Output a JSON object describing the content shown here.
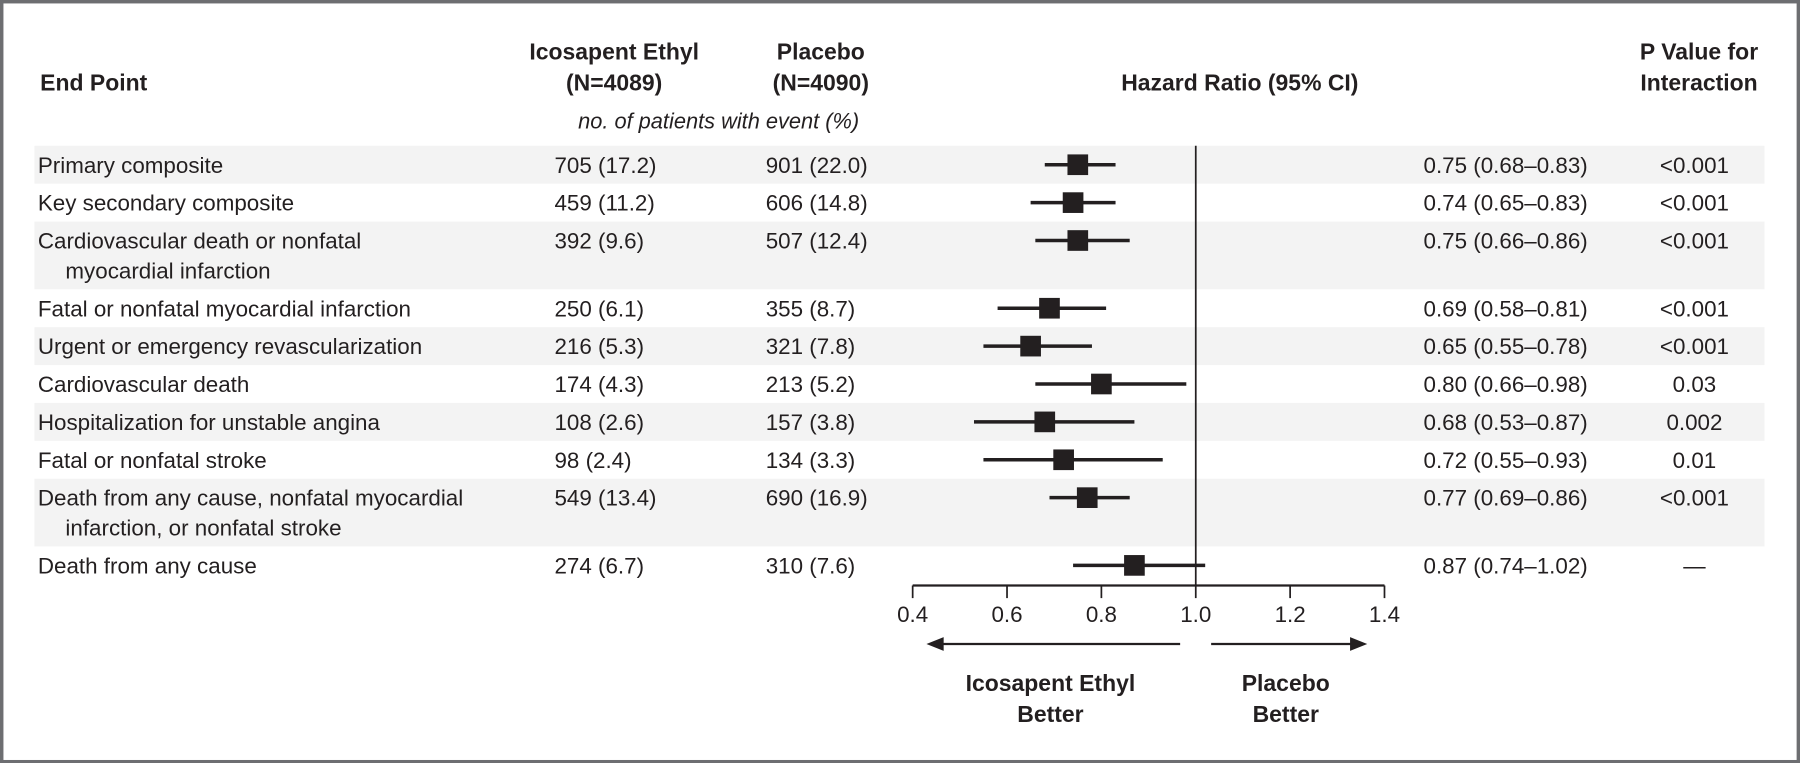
{
  "chart_data": {
    "type": "forest",
    "headers": {
      "end_point": "End Point",
      "group1": [
        "Icosapent Ethyl",
        "(N=4089)"
      ],
      "group2": [
        "Placebo",
        "(N=4090)"
      ],
      "events_subtitle": "no. of patients with event (%)",
      "hazard_ratio": "Hazard Ratio (95% CI)",
      "p_value": [
        "P Value for",
        "Interaction"
      ]
    },
    "rows": [
      {
        "label": [
          "Primary composite"
        ],
        "g1": "705 (17.2)",
        "g2": "901 (22.0)",
        "hr": 0.75,
        "lo": 0.68,
        "hi": 0.83,
        "hr_text": "0.75 (0.68–0.83)",
        "p": "<0.001",
        "shaded": true
      },
      {
        "label": [
          "Key secondary composite"
        ],
        "g1": "459 (11.2)",
        "g2": "606 (14.8)",
        "hr": 0.74,
        "lo": 0.65,
        "hi": 0.83,
        "hr_text": "0.74 (0.65–0.83)",
        "p": "<0.001",
        "shaded": false
      },
      {
        "label": [
          "Cardiovascular death or nonfatal",
          "myocardial infarction"
        ],
        "g1": "392 (9.6)",
        "g2": "507 (12.4)",
        "hr": 0.75,
        "lo": 0.66,
        "hi": 0.86,
        "hr_text": "0.75 (0.66–0.86)",
        "p": "<0.001",
        "shaded": true
      },
      {
        "label": [
          "Fatal or nonfatal myocardial infarction"
        ],
        "g1": "250 (6.1)",
        "g2": "355 (8.7)",
        "hr": 0.69,
        "lo": 0.58,
        "hi": 0.81,
        "hr_text": "0.69 (0.58–0.81)",
        "p": "<0.001",
        "shaded": false
      },
      {
        "label": [
          "Urgent or emergency revascularization"
        ],
        "g1": "216 (5.3)",
        "g2": "321 (7.8)",
        "hr": 0.65,
        "lo": 0.55,
        "hi": 0.78,
        "hr_text": "0.65 (0.55–0.78)",
        "p": "<0.001",
        "shaded": true
      },
      {
        "label": [
          "Cardiovascular death"
        ],
        "g1": "174 (4.3)",
        "g2": "213 (5.2)",
        "hr": 0.8,
        "lo": 0.66,
        "hi": 0.98,
        "hr_text": "0.80 (0.66–0.98)",
        "p": "0.03",
        "shaded": false
      },
      {
        "label": [
          "Hospitalization for unstable angina"
        ],
        "g1": "108 (2.6)",
        "g2": "157 (3.8)",
        "hr": 0.68,
        "lo": 0.53,
        "hi": 0.87,
        "hr_text": "0.68 (0.53–0.87)",
        "p": "0.002",
        "shaded": true
      },
      {
        "label": [
          "Fatal or nonfatal stroke"
        ],
        "g1": "98 (2.4)",
        "g2": "134 (3.3)",
        "hr": 0.72,
        "lo": 0.55,
        "hi": 0.93,
        "hr_text": "0.72 (0.55–0.93)",
        "p": "0.01",
        "shaded": false
      },
      {
        "label": [
          "Death from any cause, nonfatal myocardial",
          "infarction, or nonfatal stroke"
        ],
        "g1": "549 (13.4)",
        "g2": "690 (16.9)",
        "hr": 0.77,
        "lo": 0.69,
        "hi": 0.86,
        "hr_text": "0.77 (0.69–0.86)",
        "p": "<0.001",
        "shaded": true
      },
      {
        "label": [
          "Death from any cause"
        ],
        "g1": "274 (6.7)",
        "g2": "310 (7.6)",
        "hr": 0.87,
        "lo": 0.74,
        "hi": 1.02,
        "hr_text": "0.87 (0.74–1.02)",
        "p": "—",
        "shaded": false
      }
    ],
    "x_axis": {
      "range": [
        0.4,
        1.4
      ],
      "ticks": [
        "0.4",
        "0.6",
        "0.8",
        "1.0",
        "1.2",
        "1.4"
      ],
      "reference": 1.0
    },
    "direction_labels": {
      "left": [
        "Icosapent Ethyl",
        "Better"
      ],
      "right": [
        "Placebo",
        "Better"
      ]
    },
    "colors": {
      "marker": "#231f20",
      "stripe": "#f3f3f3",
      "border": "#6d6e71"
    }
  }
}
